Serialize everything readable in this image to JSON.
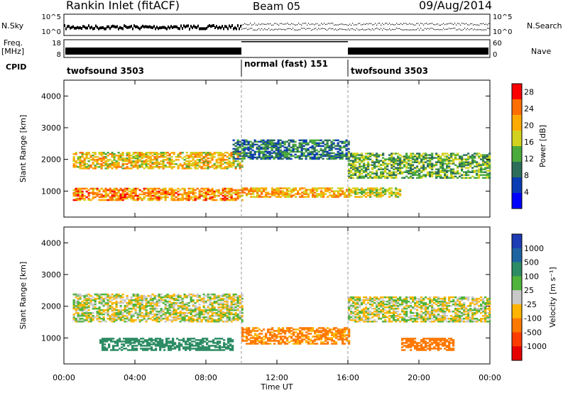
{
  "header": {
    "station": "Rankin Inlet (fitACF)",
    "beam": "Beam 05",
    "date": "09/Aug/2014"
  },
  "top_panels": {
    "nsky_label": "N.Sky",
    "nsky_ticks": [
      "10^5",
      "10^0"
    ],
    "nsearch_label": "N.Search",
    "nsearch_ticks": [
      "10^5",
      "10^0"
    ],
    "freq_label": "Freq.",
    "freq_unit": "[MHz]",
    "freq_ticks": [
      "18",
      "8"
    ],
    "nave_label": "Nave",
    "nave_ticks": [
      "60",
      "0"
    ],
    "cpid_label": "CPID",
    "cpid_segments": [
      {
        "label": "twofsound 3503",
        "start_hour": 0,
        "end_hour": 10
      },
      {
        "label": "normal (fast) 151",
        "start_hour": 10,
        "end_hour": 16
      },
      {
        "label": "twofsound 3503",
        "start_hour": 16,
        "end_hour": 24
      }
    ]
  },
  "chart_data": [
    {
      "type": "heatmap",
      "title": "",
      "xlabel": "Time UT",
      "ylabel": "Slant Range [km]",
      "xlim": [
        0,
        24
      ],
      "ylim": [
        180,
        4500
      ],
      "x_ticks": [
        "00:00",
        "04:00",
        "08:00",
        "12:00",
        "16:00",
        "20:00",
        "00:00"
      ],
      "y_ticks": [
        1000,
        2000,
        3000,
        4000
      ],
      "colorbar": {
        "label": "Power [dB]",
        "ticks": [
          4,
          8,
          12,
          16,
          20,
          24,
          28
        ],
        "range": [
          0,
          30
        ],
        "colors": [
          "#0000ff",
          "#0a3cb4",
          "#2d6e5a",
          "#4baa3c",
          "#d2d21e",
          "#ffaa00",
          "#ff6e00",
          "#ff0000"
        ]
      },
      "echo_bands": [
        {
          "start_hour": 0.5,
          "end_hour": 10,
          "range_km": [
            1700,
            2200
          ],
          "power_db": 20
        },
        {
          "start_hour": 0.5,
          "end_hour": 10,
          "range_km": [
            700,
            1100
          ],
          "power_db": 24
        },
        {
          "start_hour": 10,
          "end_hour": 16,
          "range_km": [
            800,
            1100
          ],
          "power_db": 22
        },
        {
          "start_hour": 9.5,
          "end_hour": 16,
          "range_km": [
            2000,
            2600
          ],
          "power_db": 10
        },
        {
          "start_hour": 16,
          "end_hour": 24,
          "range_km": [
            1400,
            2200
          ],
          "power_db": 14
        },
        {
          "start_hour": 16,
          "end_hour": 19,
          "range_km": [
            800,
            1100
          ],
          "power_db": 18
        }
      ]
    },
    {
      "type": "heatmap",
      "title": "",
      "xlabel": "Time UT",
      "ylabel": "Slant Range [km]",
      "xlim": [
        0,
        24
      ],
      "ylim": [
        180,
        4500
      ],
      "x_ticks": [
        "00:00",
        "04:00",
        "08:00",
        "12:00",
        "16:00",
        "20:00",
        "00:00"
      ],
      "y_ticks": [
        1000,
        2000,
        3000,
        4000
      ],
      "colorbar": {
        "label": "Velocity",
        "unit": "[m s⁻¹]",
        "ticks": [
          "1000",
          "500",
          "100",
          "25",
          "-25",
          "-100",
          "-500",
          "-1000"
        ],
        "colors": [
          "#1e3cb4",
          "#1e64a0",
          "#2d8c64",
          "#50b43c",
          "#c8c8c8",
          "#ffb400",
          "#ff7800",
          "#ff3c00",
          "#e60000"
        ]
      },
      "echo_bands": [
        {
          "start_hour": 0.5,
          "end_hour": 10,
          "range_km": [
            1500,
            2400
          ],
          "velocity": 0
        },
        {
          "start_hour": 2,
          "end_hour": 9.5,
          "range_km": [
            600,
            1000
          ],
          "velocity": 300
        },
        {
          "start_hour": 10,
          "end_hour": 16,
          "range_km": [
            800,
            1300
          ],
          "velocity": -150
        },
        {
          "start_hour": 16,
          "end_hour": 24,
          "range_km": [
            1500,
            2300
          ],
          "velocity": 0
        },
        {
          "start_hour": 19,
          "end_hour": 22,
          "range_km": [
            600,
            1000
          ],
          "velocity": -300
        }
      ]
    }
  ]
}
